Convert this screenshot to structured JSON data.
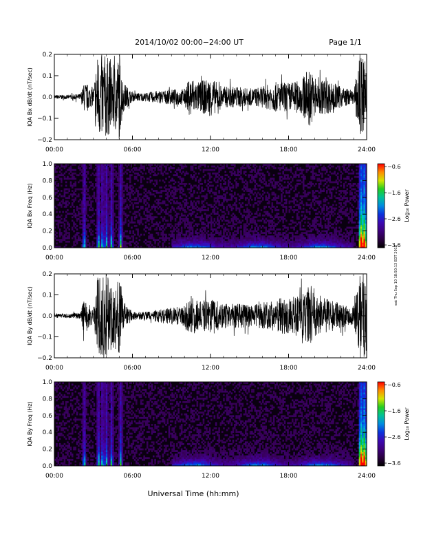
{
  "header": {
    "date_range": "2014/10/02  00:00−24:00 UT",
    "page": "Page 1/1"
  },
  "side_note": "eat Thu Sep 10 18:50:13 EDT 2015",
  "footer": {
    "xlabel": "Universal Time (hh:mm)"
  },
  "chart_data": [
    {
      "type": "line",
      "title": "",
      "ylabel": "IQA Bx dB/dt (nT/sec)",
      "xlabel": "",
      "x_ticks": [
        "00:00",
        "06:00",
        "12:00",
        "18:00",
        "24:00"
      ],
      "xlim": [
        0,
        24
      ],
      "y_ticks": [
        "0.2",
        "0.1",
        "0.0",
        "−0.1",
        "−0.2"
      ],
      "ylim": [
        -0.2,
        0.2
      ],
      "series": [
        {
          "x": [
            0,
            1,
            2,
            2.3,
            3,
            3.3,
            3.5,
            4,
            4.5,
            5,
            5.3,
            6,
            7,
            8,
            9,
            10,
            10.5,
            11,
            12,
            13,
            14,
            15,
            16,
            17,
            18,
            19,
            19.5,
            20,
            21,
            22,
            23,
            23.5,
            23.7,
            24
          ],
          "envelope": [
            0.01,
            0.01,
            0.015,
            0.07,
            0.04,
            0.2,
            0.2,
            0.2,
            0.15,
            0.2,
            0.07,
            0.02,
            0.02,
            0.03,
            0.035,
            0.04,
            0.1,
            0.07,
            0.09,
            0.05,
            0.05,
            0.04,
            0.05,
            0.07,
            0.07,
            0.08,
            0.14,
            0.1,
            0.08,
            0.05,
            0.03,
            0.2,
            0.2,
            0.2
          ]
        }
      ]
    },
    {
      "type": "heatmap",
      "title": "",
      "ylabel": "IQA Bx Freq (Hz)",
      "xlabel": "",
      "x_ticks": [
        "00:00",
        "06:00",
        "12:00",
        "18:00",
        "24:00"
      ],
      "xlim": [
        0,
        24
      ],
      "y_ticks": [
        "1.0",
        "0.8",
        "0.6",
        "0.4",
        "0.2",
        "0.0"
      ],
      "ylim": [
        0,
        1.0
      ],
      "colorbar": {
        "label": "Log₁₀ Power",
        "ticks": [
          "−0.6",
          "−1.6",
          "−2.6",
          "−3.6"
        ],
        "range": [
          -3.6,
          -0.6
        ]
      },
      "bright_columns_ut": [
        2.3,
        3.4,
        3.7,
        4.0,
        4.4,
        5.1,
        23.6,
        23.8
      ]
    },
    {
      "type": "line",
      "title": "",
      "ylabel": "IQA By dB/dt (nT/sec)",
      "xlabel": "",
      "x_ticks": [
        "00:00",
        "06:00",
        "12:00",
        "18:00",
        "24:00"
      ],
      "xlim": [
        0,
        24
      ],
      "y_ticks": [
        "0.2",
        "0.1",
        "0.0",
        "−0.1",
        "−0.2"
      ],
      "ylim": [
        -0.2,
        0.2
      ],
      "series": [
        {
          "x": [
            0,
            1,
            2,
            2.3,
            3,
            3.3,
            3.5,
            4,
            4.5,
            5,
            5.3,
            6,
            7,
            8,
            9,
            10,
            10.5,
            11,
            12,
            13,
            14,
            15,
            16,
            17,
            18,
            19,
            19.5,
            20,
            21,
            22,
            23,
            23.5,
            23.7,
            24
          ],
          "envelope": [
            0.01,
            0.01,
            0.015,
            0.09,
            0.03,
            0.2,
            0.2,
            0.2,
            0.15,
            0.2,
            0.07,
            0.02,
            0.02,
            0.03,
            0.04,
            0.05,
            0.1,
            0.07,
            0.08,
            0.06,
            0.06,
            0.05,
            0.06,
            0.08,
            0.09,
            0.1,
            0.15,
            0.1,
            0.08,
            0.06,
            0.04,
            0.2,
            0.2,
            0.2
          ]
        }
      ]
    },
    {
      "type": "heatmap",
      "title": "",
      "ylabel": "IQA By Freq (Hz)",
      "xlabel": "",
      "x_ticks": [
        "00:00",
        "06:00",
        "12:00",
        "18:00",
        "24:00"
      ],
      "xlim": [
        0,
        24
      ],
      "y_ticks": [
        "1.0",
        "0.8",
        "0.6",
        "0.4",
        "0.2",
        "0.0"
      ],
      "ylim": [
        0,
        1.0
      ],
      "colorbar": {
        "label": "Log₁₀ Power",
        "ticks": [
          "−0.6",
          "−1.6",
          "−2.6",
          "−3.6"
        ],
        "range": [
          -3.6,
          -0.6
        ]
      },
      "bright_columns_ut": [
        2.3,
        3.4,
        3.7,
        4.0,
        4.4,
        5.1,
        23.6,
        23.8
      ]
    }
  ]
}
